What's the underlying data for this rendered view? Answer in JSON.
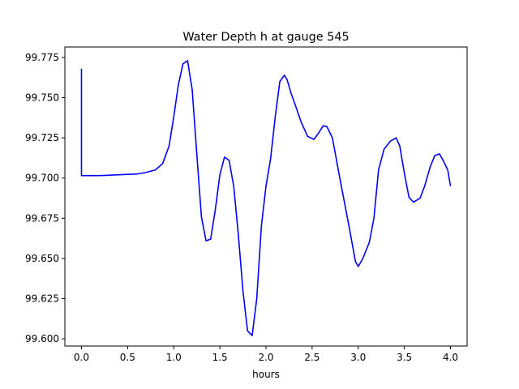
{
  "chart_data": {
    "type": "line",
    "title": "Water Depth h at gauge 545",
    "xlabel": "hours",
    "ylabel": "",
    "xlim": [
      -0.18,
      4.18
    ],
    "ylim": [
      99.5955,
      99.7815
    ],
    "xticks": [
      0.0,
      0.5,
      1.0,
      1.5,
      2.0,
      2.5,
      3.0,
      3.5,
      4.0
    ],
    "xtick_labels": [
      "0.0",
      "0.5",
      "1.0",
      "1.5",
      "2.0",
      "2.5",
      "3.0",
      "3.5",
      "4.0"
    ],
    "yticks": [
      99.6,
      99.625,
      99.65,
      99.675,
      99.7,
      99.725,
      99.75,
      99.775
    ],
    "ytick_labels": [
      "99.600",
      "99.625",
      "99.650",
      "99.675",
      "99.700",
      "99.725",
      "99.750",
      "99.775"
    ],
    "grid": false,
    "series": [
      {
        "color": "#0000ff",
        "x": [
          0.0,
          0.0,
          0.0,
          0.2,
          0.4,
          0.6,
          0.7,
          0.8,
          0.88,
          0.95,
          1.0,
          1.05,
          1.1,
          1.15,
          1.2,
          1.25,
          1.3,
          1.35,
          1.4,
          1.45,
          1.5,
          1.55,
          1.6,
          1.65,
          1.7,
          1.75,
          1.8,
          1.85,
          1.9,
          1.95,
          2.0,
          2.05,
          2.1,
          2.15,
          2.2,
          2.23,
          2.27,
          2.32,
          2.38,
          2.45,
          2.52,
          2.57,
          2.62,
          2.66,
          2.72,
          2.8,
          2.9,
          2.97,
          3.0,
          3.05,
          3.12,
          3.17,
          3.22,
          3.28,
          3.35,
          3.41,
          3.45,
          3.5,
          3.55,
          3.6,
          3.67,
          3.72,
          3.78,
          3.83,
          3.88,
          3.92,
          3.97,
          4.0
        ],
        "y": [
          99.768,
          99.7015,
          99.7015,
          99.7015,
          99.702,
          99.7025,
          99.7035,
          99.705,
          99.709,
          99.72,
          99.738,
          99.758,
          99.771,
          99.773,
          99.755,
          99.715,
          99.676,
          99.661,
          99.662,
          99.68,
          99.702,
          99.713,
          99.711,
          99.695,
          99.665,
          99.63,
          99.605,
          99.602,
          99.625,
          99.67,
          99.695,
          99.712,
          99.738,
          99.76,
          99.764,
          99.761,
          99.753,
          99.745,
          99.735,
          99.726,
          99.724,
          99.728,
          99.7325,
          99.732,
          99.725,
          99.7,
          99.67,
          99.648,
          99.645,
          99.65,
          99.66,
          99.675,
          99.705,
          99.718,
          99.723,
          99.725,
          99.72,
          99.703,
          99.688,
          99.685,
          99.6875,
          99.695,
          99.707,
          99.714,
          99.715,
          99.711,
          99.705,
          99.695
        ]
      }
    ]
  }
}
